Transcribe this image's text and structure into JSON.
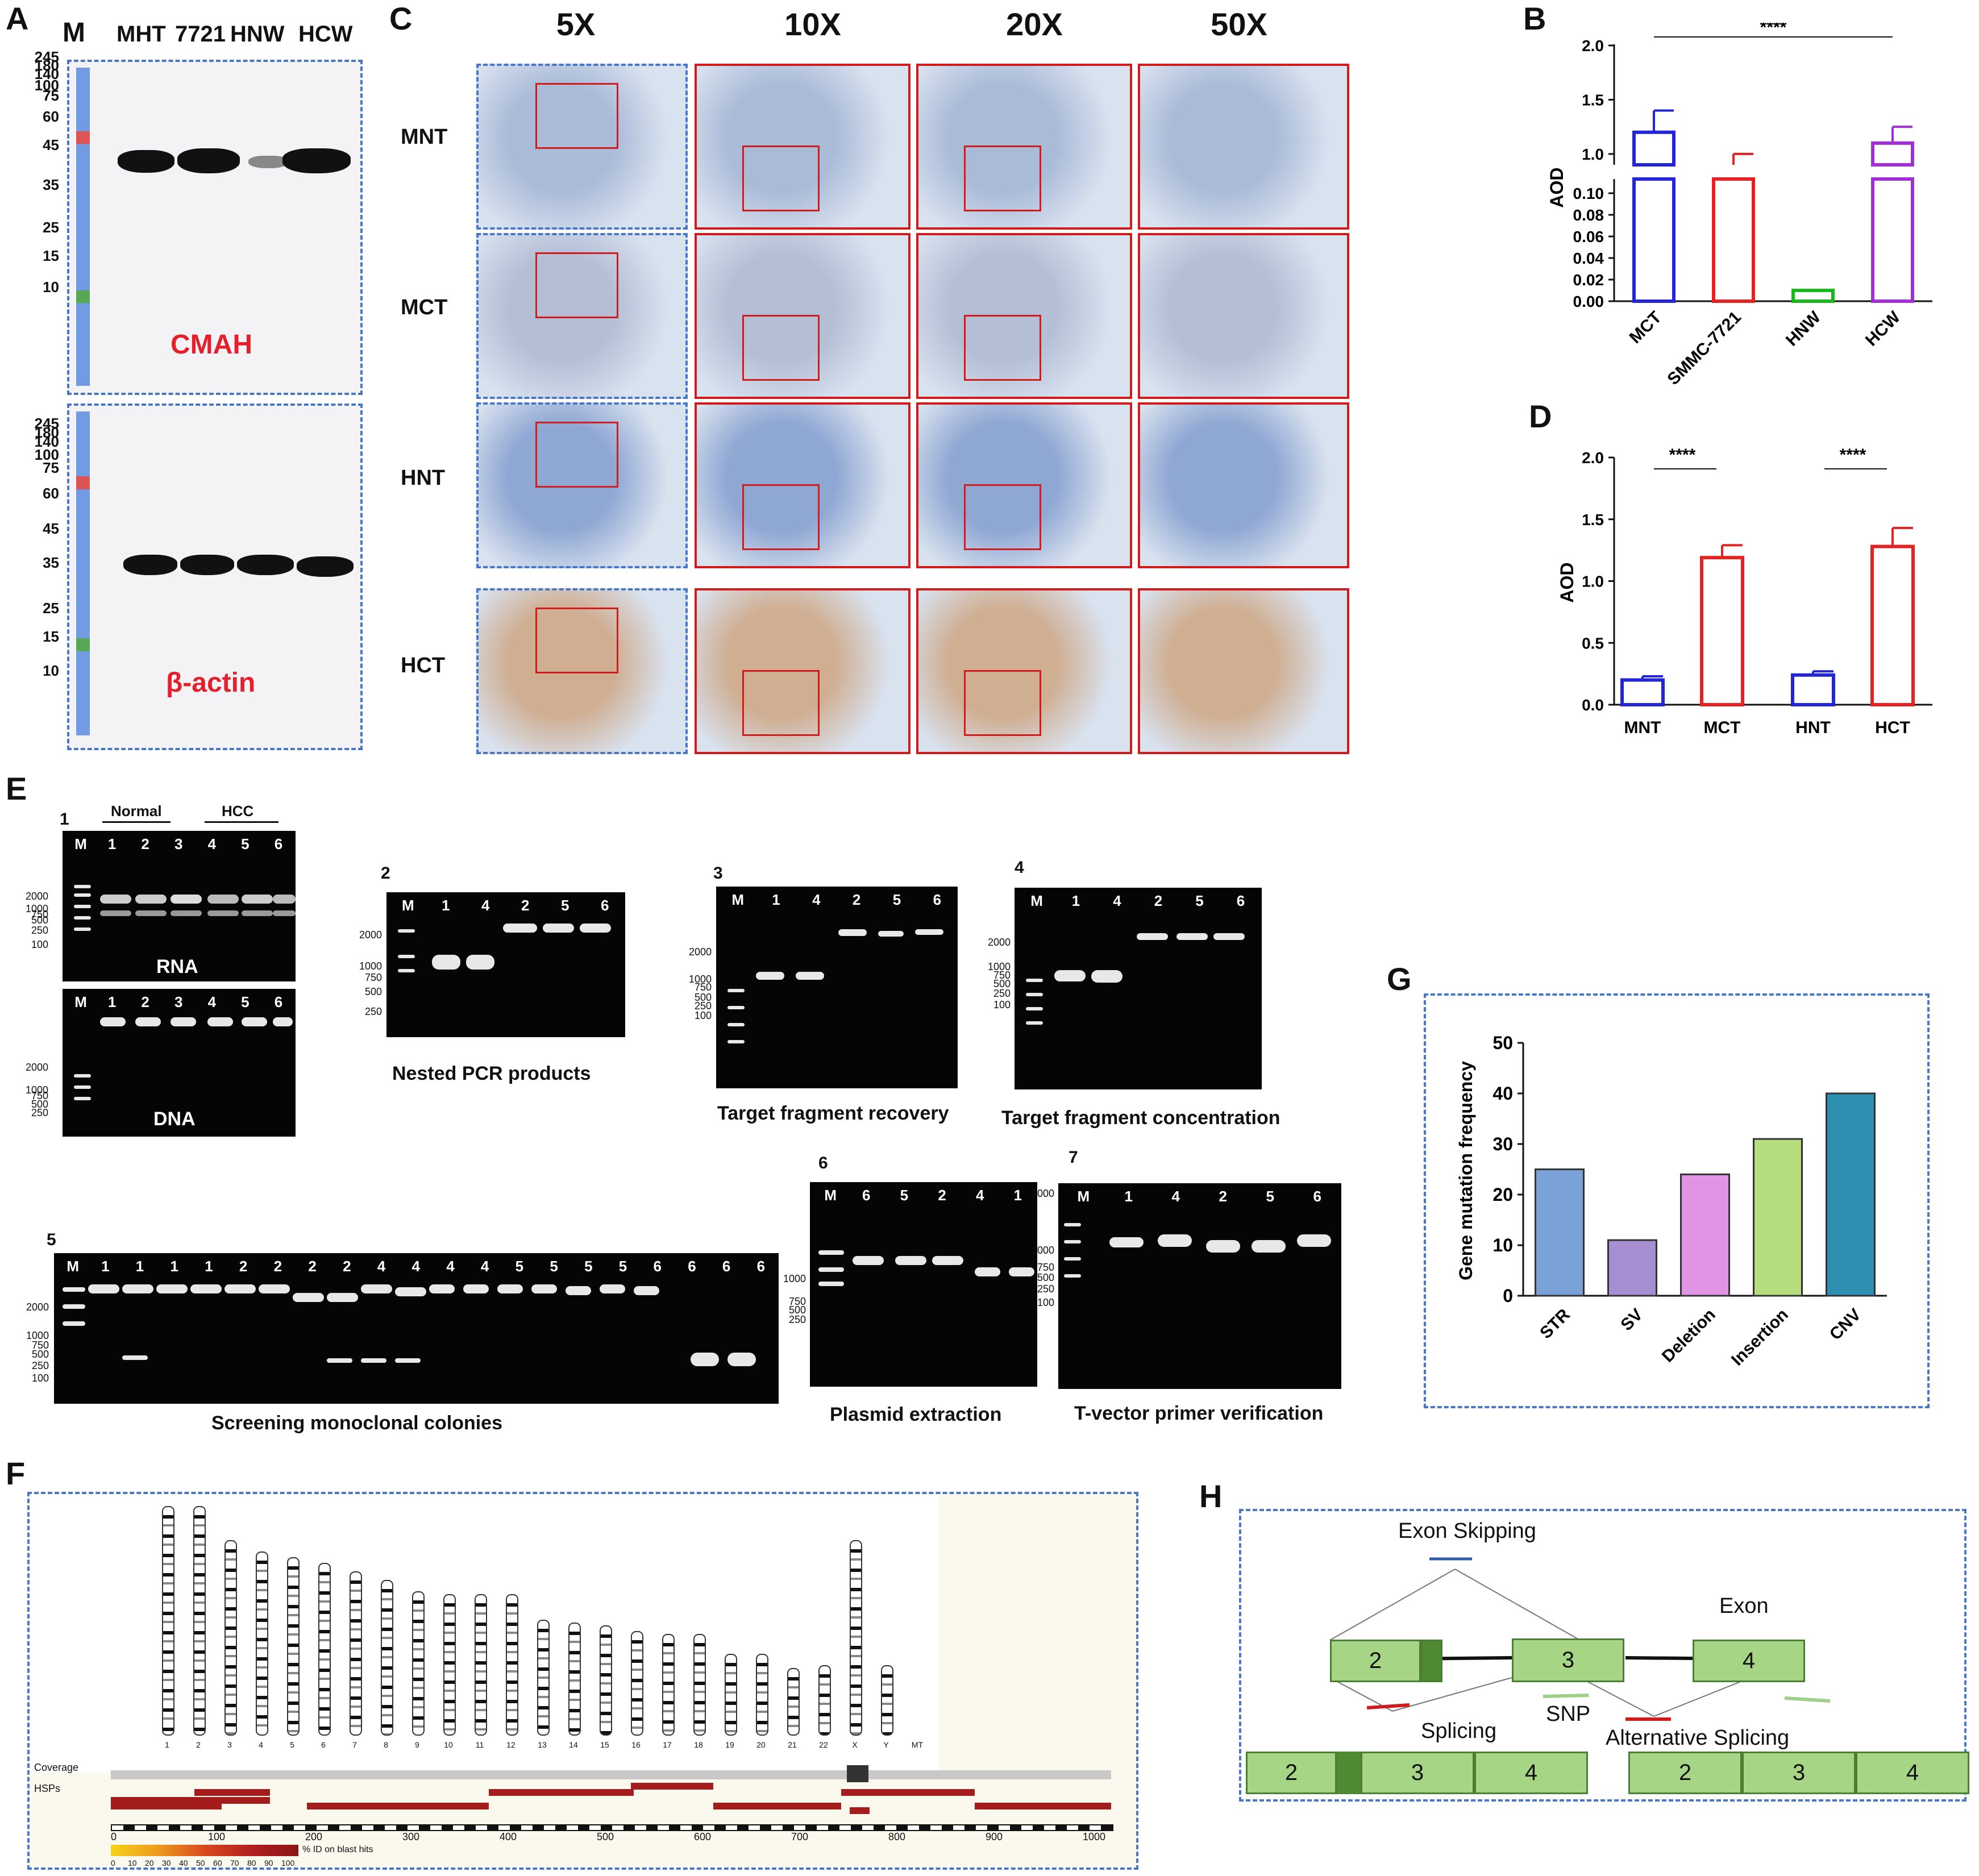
{
  "panels": {
    "A": "A",
    "B": "B",
    "C": "C",
    "D": "D",
    "E": "E",
    "F": "F",
    "G": "G",
    "H": "H"
  },
  "panelA": {
    "marker_label": "M",
    "lanes": [
      "MHT",
      "7721",
      "HNW",
      "HCW"
    ],
    "ladder": [
      "245",
      "180",
      "140",
      "100",
      "75",
      "60",
      "45",
      "35",
      "25",
      "15",
      "10"
    ],
    "top_label": "CMAH",
    "bottom_label": "β-actin",
    "band_colors": {
      "marker_red": "#e0363c",
      "marker_green": "#3d9a3a",
      "marker_blue": "#3f74d6"
    }
  },
  "panelC": {
    "magnifications": [
      "5X",
      "10X",
      "20X",
      "50X"
    ],
    "rows": [
      "MNT",
      "MCT",
      "HNT",
      "HCT"
    ],
    "tissue_colors": {
      "MNT": "#aabbd8",
      "MCT": "#b4bfd6",
      "HNT": "#8fa7d3",
      "HCT": "#cfae92"
    }
  },
  "chart_data": [
    {
      "id": "B",
      "type": "bar",
      "categories": [
        "MCT",
        "SMMC-7721",
        "HNW",
        "HCW"
      ],
      "values": [
        1.2,
        0.9,
        0.01,
        1.1
      ],
      "errors": [
        0.2,
        0.1,
        0.002,
        0.15
      ],
      "colors": [
        "#2525d8",
        "#e32222",
        "#1db51d",
        "#a12ed6"
      ],
      "ylabel": "AOD",
      "broken_axis": true,
      "lower_ticks": [
        "0.00",
        "0.02",
        "0.04",
        "0.06",
        "0.08",
        "0.10"
      ],
      "upper_ticks": [
        "1.0",
        "1.5",
        "2.0"
      ],
      "significance": [
        {
          "label": "****",
          "from": "MCT",
          "to": "HCW"
        }
      ]
    },
    {
      "id": "D",
      "type": "bar",
      "categories": [
        "MNT",
        "MCT",
        "HNT",
        "HCT"
      ],
      "values": [
        0.2,
        1.19,
        0.24,
        1.28
      ],
      "errors": [
        0.03,
        0.1,
        0.03,
        0.15
      ],
      "colors": [
        "#2525d8",
        "#e32222",
        "#2525d8",
        "#e32222"
      ],
      "ylabel": "AOD",
      "ylim": [
        0,
        2.0
      ],
      "yticks": [
        "0.0",
        "0.5",
        "1.0",
        "1.5",
        "2.0"
      ],
      "significance": [
        {
          "label": "****",
          "from": "MNT",
          "to": "MCT"
        },
        {
          "label": "****",
          "from": "HNT",
          "to": "HCT"
        }
      ]
    },
    {
      "id": "G",
      "type": "bar",
      "categories": [
        "STR",
        "SV",
        "Deletion",
        "Insertion",
        "CNV"
      ],
      "values": [
        25,
        11,
        24,
        31,
        40
      ],
      "colors": [
        "#7ba2d8",
        "#a58fd2",
        "#e294e4",
        "#b5dc7d",
        "#2e8fb0"
      ],
      "ylabel": "Gene mutation frequency",
      "ylim": [
        0,
        50
      ],
      "yticks": [
        "0",
        "10",
        "20",
        "30",
        "40",
        "50"
      ]
    }
  ],
  "panelE": {
    "gel1": {
      "num": "1",
      "groups": [
        "Normal",
        "HCC"
      ],
      "lanes": [
        "M",
        "1",
        "2",
        "3",
        "4",
        "5",
        "6"
      ],
      "rna_ticks": [
        "2000",
        "1000",
        "750",
        "500",
        "250",
        "100"
      ],
      "dna_ticks": [
        "2000",
        "1000",
        "750",
        "500",
        "250"
      ],
      "rna_label": "RNA",
      "dna_label": "DNA"
    },
    "gel2": {
      "num": "2",
      "lanes": [
        "M",
        "1",
        "4",
        "2",
        "5",
        "6"
      ],
      "ticks": [
        "2000",
        "1000",
        "750",
        "500",
        "250"
      ],
      "caption": "Nested PCR products"
    },
    "gel3": {
      "num": "3",
      "lanes": [
        "M",
        "1",
        "4",
        "2",
        "5",
        "6"
      ],
      "ticks": [
        "2000",
        "1000",
        "750",
        "500",
        "250",
        "100"
      ],
      "caption": "Target fragment recovery"
    },
    "gel4": {
      "num": "4",
      "lanes": [
        "M",
        "1",
        "4",
        "2",
        "5",
        "6"
      ],
      "ticks": [
        "2000",
        "1000",
        "750",
        "500",
        "250",
        "100"
      ],
      "caption": "Target fragment concentration"
    },
    "gel5": {
      "num": "5",
      "lanes": [
        "M",
        "1",
        "1",
        "1",
        "1",
        "2",
        "2",
        "2",
        "2",
        "4",
        "4",
        "4",
        "4",
        "5",
        "5",
        "5",
        "5",
        "6",
        "6",
        "6",
        "6"
      ],
      "ticks": [
        "2000",
        "1000",
        "750",
        "500",
        "250",
        "100"
      ],
      "caption": "Screening monoclonal colonies"
    },
    "gel6": {
      "num": "6",
      "lanes": [
        "M",
        "6",
        "5",
        "2",
        "4",
        "1"
      ],
      "ticks": [
        "1000",
        "750",
        "500",
        "250"
      ],
      "caption": "Plasmid extraction"
    },
    "gel7": {
      "num": "7",
      "lanes": [
        "M",
        "1",
        "4",
        "2",
        "5",
        "6"
      ],
      "ticks": [
        "2000",
        "1000",
        "750",
        "500",
        "250",
        "100"
      ],
      "caption": "T-vector primer verification"
    }
  },
  "panelF": {
    "chromosomes": [
      "1",
      "2",
      "3",
      "4",
      "5",
      "6",
      "7",
      "8",
      "9",
      "10",
      "11",
      "12",
      "13",
      "14",
      "15",
      "16",
      "17",
      "18",
      "19",
      "20",
      "21",
      "22",
      "X",
      "Y",
      "MT"
    ],
    "coverage_label": "Coverage",
    "hsps_label": "HSPs",
    "scale": [
      "0",
      "100",
      "200",
      "300",
      "400",
      "500",
      "600",
      "700",
      "800",
      "900",
      "1000"
    ],
    "legend_ticks": [
      "0",
      "10",
      "20",
      "30",
      "40",
      "50",
      "60",
      "70",
      "80",
      "90",
      "100"
    ],
    "legend_text": "% ID on blast hits"
  },
  "panelH": {
    "exon_skipping": "Exon Skipping",
    "exon": "Exon",
    "splicing": "Splicing",
    "snp": "SNP",
    "alt_splicing": "Alternative Splicing",
    "exons": [
      "2",
      "3",
      "4"
    ]
  }
}
